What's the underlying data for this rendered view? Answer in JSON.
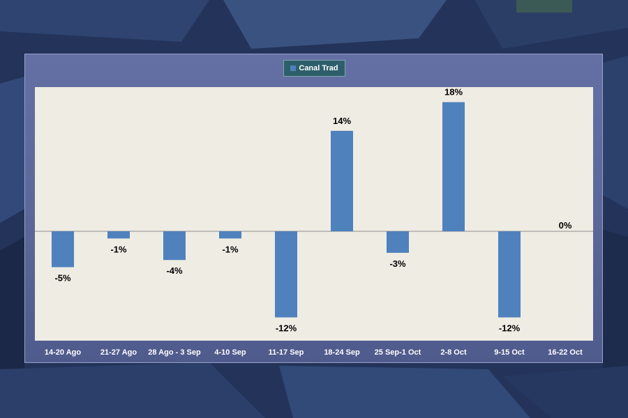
{
  "chart_data": {
    "type": "bar",
    "title": "",
    "xlabel": "",
    "ylabel": "",
    "ylim": [
      -0.15,
      0.2
    ],
    "legend": {
      "position": "top-center",
      "entries": [
        "Canal Trad"
      ]
    },
    "categories": [
      "14-20 Ago",
      "21-27 Ago",
      "28 Ago - 3 Sep",
      "4-10 Sep",
      "11-17 Sep",
      "18-24 Sep",
      "25 Sep-1 Oct",
      "2-8 Oct",
      "9-15 Oct",
      "16-22 Oct"
    ],
    "series": [
      {
        "name": "Canal Trad",
        "color": "#4f81bd",
        "values": [
          -0.05,
          -0.01,
          -0.04,
          -0.01,
          -0.12,
          0.14,
          -0.03,
          0.18,
          -0.12,
          0.0
        ],
        "data_labels": [
          "-5%",
          "-1%",
          "-4%",
          "-1%",
          "-12%",
          "14%",
          "-3%",
          "18%",
          "-12%",
          "0%"
        ]
      }
    ]
  }
}
